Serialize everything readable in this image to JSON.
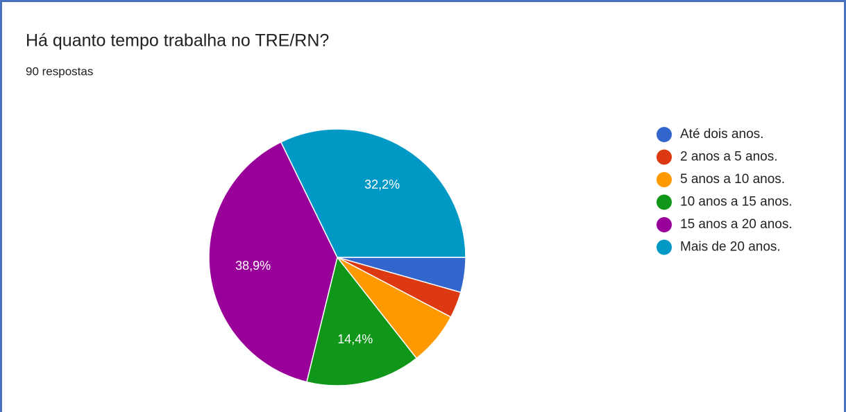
{
  "chart_data": {
    "type": "pie",
    "title": "Há quanto tempo trabalha no TRE/RN?",
    "subtitle": "90 respostas",
    "categories": [
      "Até dois anos.",
      "2 anos a 5 anos.",
      "5 anos a 10 anos.",
      "10 anos a 15 anos.",
      "15 anos a 20 anos.",
      "Mais de 20 anos."
    ],
    "values": [
      4.4,
      3.3,
      6.7,
      14.4,
      38.9,
      32.2
    ],
    "value_labels": [
      null,
      null,
      null,
      "14,4%",
      "38,9%",
      "32,2%"
    ],
    "colors": [
      "#3366cc",
      "#dc3912",
      "#ff9900",
      "#109618",
      "#990099",
      "#0099c6"
    ],
    "legend": "right"
  }
}
